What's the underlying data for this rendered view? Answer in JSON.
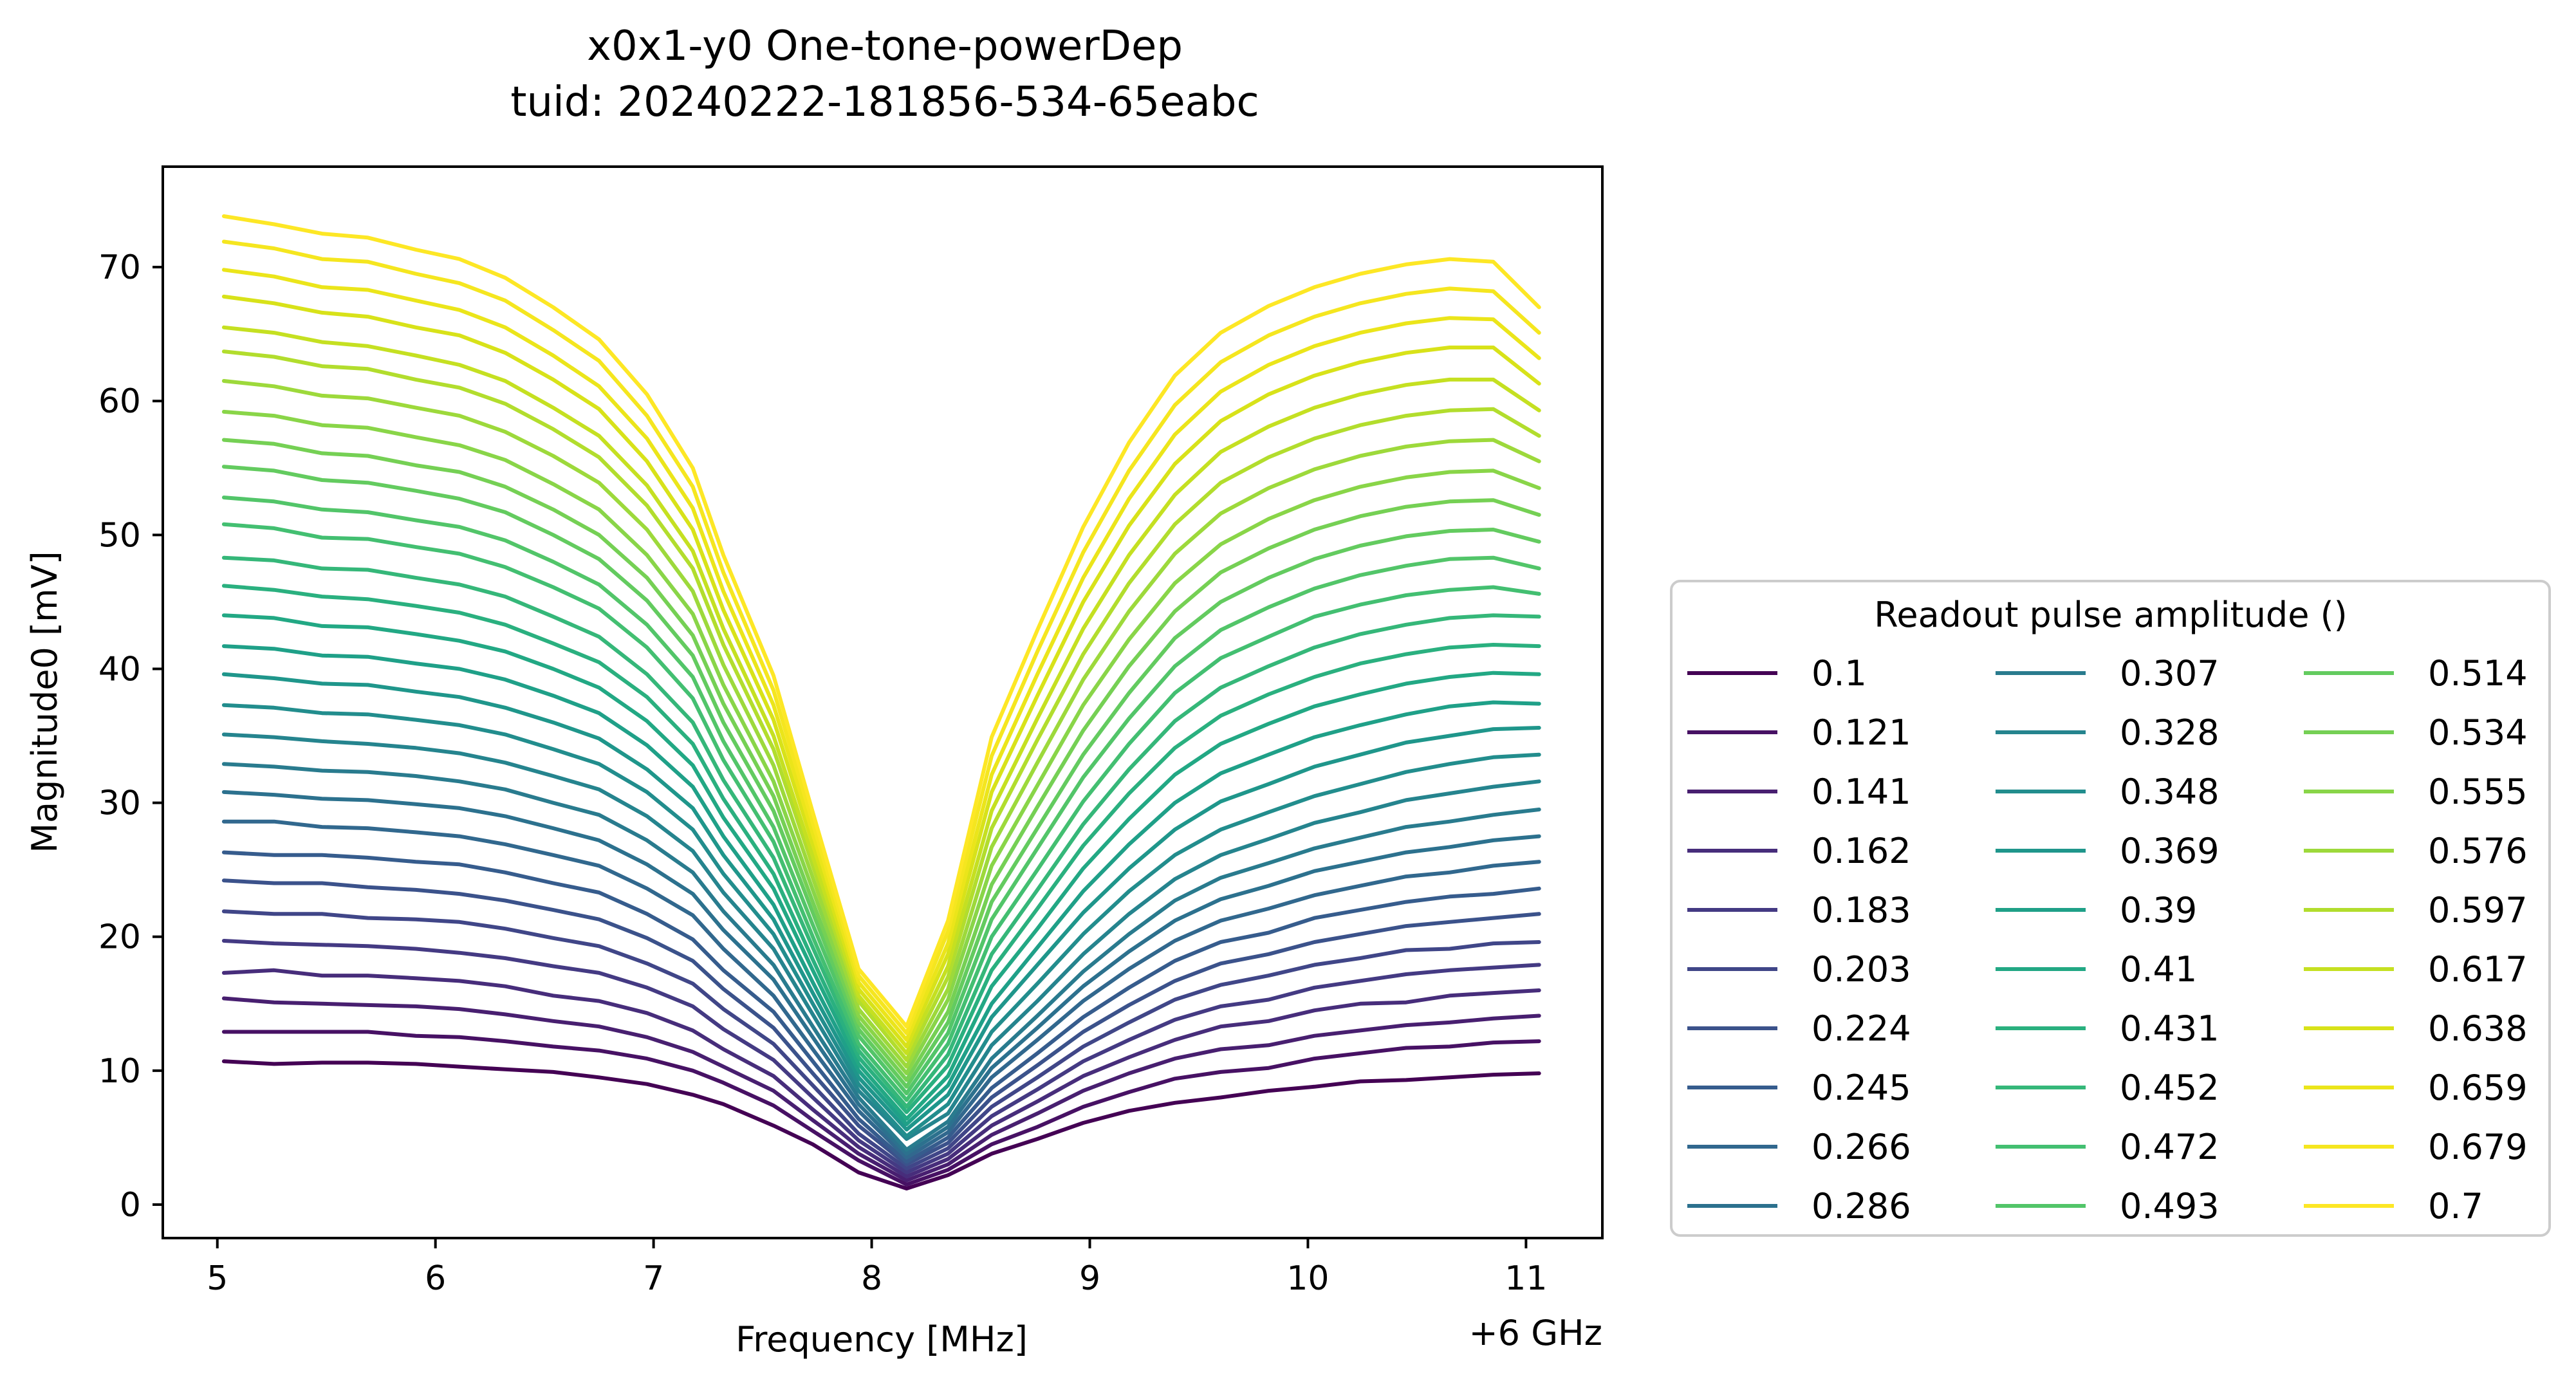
{
  "chart_data": {
    "type": "line",
    "title": "x0x1-y0 One-tone-powerDep",
    "subtitle": "tuid: 20240222-181856-534-65eabc",
    "xlabel": "Frequency [MHz]",
    "x_offset_label": "+6 GHz",
    "ylabel": "Magnitude0 [mV]",
    "xlim": [
      4.75,
      11.35
    ],
    "ylim": [
      -2.5,
      77.5
    ],
    "xticks": [
      5,
      6,
      7,
      8,
      9,
      10,
      11
    ],
    "yticks": [
      0,
      10,
      20,
      30,
      40,
      50,
      60,
      70
    ],
    "grid": false,
    "colormap": "viridis",
    "legend": {
      "title": "Readout pulse amplitude ()",
      "placement": "right",
      "ncol": 3
    },
    "x": [
      5.03,
      5.26,
      5.48,
      5.69,
      5.91,
      6.11,
      6.32,
      6.54,
      6.75,
      6.97,
      7.18,
      7.32,
      7.55,
      7.73,
      7.94,
      8.16,
      8.35,
      8.55,
      8.76,
      8.97,
      9.18,
      9.39,
      9.6,
      9.82,
      10.03,
      10.24,
      10.45,
      10.65,
      10.85,
      11.06
    ],
    "series": [
      {
        "name": "0.1",
        "color": "#440154",
        "values": [
          10.7,
          10.5,
          10.6,
          10.6,
          10.5,
          10.3,
          10.1,
          9.9,
          9.5,
          9.0,
          8.2,
          7.5,
          5.9,
          4.5,
          2.4,
          1.2,
          2.2,
          3.8,
          4.9,
          6.1,
          7.0,
          7.6,
          8.0,
          8.5,
          8.8,
          9.2,
          9.3,
          9.5,
          9.7,
          9.8
        ]
      },
      {
        "name": "0.121",
        "color": "#471164",
        "values": [
          12.9,
          12.9,
          12.9,
          12.9,
          12.6,
          12.5,
          12.2,
          11.8,
          11.5,
          10.9,
          10.0,
          9.1,
          7.4,
          5.5,
          3.3,
          1.5,
          2.6,
          4.5,
          5.8,
          7.3,
          8.4,
          9.4,
          9.9,
          10.2,
          10.9,
          11.3,
          11.7,
          11.8,
          12.1,
          12.2
        ]
      },
      {
        "name": "0.141",
        "color": "#481f70",
        "values": [
          15.4,
          15.1,
          15.0,
          14.9,
          14.8,
          14.6,
          14.2,
          13.7,
          13.3,
          12.5,
          11.4,
          10.3,
          8.5,
          6.3,
          3.8,
          1.8,
          3.0,
          5.2,
          6.8,
          8.5,
          9.8,
          10.9,
          11.6,
          11.9,
          12.6,
          13.0,
          13.4,
          13.6,
          13.9,
          14.1
        ]
      },
      {
        "name": "0.162",
        "color": "#472d7b",
        "values": [
          17.3,
          17.5,
          17.1,
          17.1,
          16.9,
          16.7,
          16.3,
          15.6,
          15.2,
          14.3,
          13.0,
          11.6,
          9.6,
          7.1,
          4.3,
          2.1,
          3.4,
          5.9,
          7.7,
          9.6,
          11.0,
          12.3,
          13.3,
          13.7,
          14.5,
          15.0,
          15.1,
          15.6,
          15.8,
          16.0
        ]
      },
      {
        "name": "0.183",
        "color": "#443a83",
        "values": [
          19.7,
          19.5,
          19.4,
          19.3,
          19.1,
          18.8,
          18.4,
          17.8,
          17.3,
          16.2,
          14.8,
          13.1,
          10.8,
          8.0,
          4.8,
          2.4,
          3.8,
          6.6,
          8.6,
          10.7,
          12.3,
          13.8,
          14.8,
          15.3,
          16.2,
          16.7,
          17.2,
          17.5,
          17.7,
          17.9
        ]
      },
      {
        "name": "0.203",
        "color": "#404688",
        "values": [
          21.9,
          21.7,
          21.7,
          21.4,
          21.3,
          21.1,
          20.6,
          19.9,
          19.3,
          18.0,
          16.5,
          14.6,
          12.0,
          8.9,
          5.3,
          2.7,
          4.2,
          7.3,
          9.5,
          11.8,
          13.6,
          15.3,
          16.4,
          17.1,
          17.9,
          18.4,
          19.0,
          19.1,
          19.5,
          19.6
        ]
      },
      {
        "name": "0.224",
        "color": "#3b528b",
        "values": [
          24.2,
          24.0,
          24.0,
          23.7,
          23.5,
          23.2,
          22.7,
          22.0,
          21.3,
          19.9,
          18.2,
          16.1,
          13.2,
          9.8,
          5.9,
          3.0,
          4.6,
          8.0,
          10.4,
          12.9,
          14.9,
          16.7,
          18.0,
          18.7,
          19.6,
          20.2,
          20.8,
          21.1,
          21.4,
          21.7
        ]
      },
      {
        "name": "0.245",
        "color": "#365c8d",
        "values": [
          26.3,
          26.1,
          26.1,
          25.9,
          25.6,
          25.4,
          24.8,
          24.0,
          23.3,
          21.7,
          19.8,
          17.5,
          14.4,
          10.7,
          6.4,
          3.2,
          5.0,
          8.7,
          11.3,
          14.0,
          16.2,
          18.2,
          19.6,
          20.3,
          21.4,
          22.0,
          22.6,
          23.0,
          23.2,
          23.6
        ]
      },
      {
        "name": "0.266",
        "color": "#31688e",
        "values": [
          28.6,
          28.6,
          28.2,
          28.1,
          27.8,
          27.5,
          26.9,
          26.1,
          25.3,
          23.6,
          21.6,
          19.1,
          15.6,
          11.6,
          7.0,
          3.5,
          5.4,
          9.5,
          12.3,
          15.2,
          17.6,
          19.7,
          21.2,
          22.1,
          23.1,
          23.8,
          24.5,
          24.8,
          25.3,
          25.6
        ]
      },
      {
        "name": "0.286",
        "color": "#2c718e",
        "values": [
          30.8,
          30.6,
          30.3,
          30.2,
          29.9,
          29.6,
          29.0,
          28.1,
          27.2,
          25.4,
          23.2,
          20.5,
          16.8,
          12.5,
          7.5,
          3.8,
          5.8,
          10.2,
          13.2,
          16.3,
          18.9,
          21.2,
          22.8,
          23.8,
          24.9,
          25.6,
          26.3,
          26.7,
          27.2,
          27.5
        ]
      },
      {
        "name": "0.307",
        "color": "#297b8e",
        "values": [
          32.9,
          32.7,
          32.4,
          32.3,
          32.0,
          31.6,
          31.0,
          30.0,
          29.1,
          27.2,
          24.8,
          21.9,
          17.9,
          13.3,
          8.0,
          4.1,
          6.2,
          10.9,
          14.1,
          17.4,
          20.2,
          22.7,
          24.4,
          25.5,
          26.6,
          27.4,
          28.2,
          28.6,
          29.1,
          29.5
        ]
      },
      {
        "name": "0.328",
        "color": "#25848e",
        "values": [
          35.1,
          34.9,
          34.6,
          34.4,
          34.1,
          33.7,
          33.0,
          32.0,
          31.0,
          29.0,
          26.4,
          23.3,
          19.1,
          14.2,
          8.5,
          4.9,
          6.8,
          11.9,
          15.2,
          18.7,
          21.7,
          24.3,
          26.1,
          27.3,
          28.5,
          29.3,
          30.2,
          30.7,
          31.2,
          31.6
        ]
      },
      {
        "name": "0.348",
        "color": "#228d8d",
        "values": [
          37.3,
          37.1,
          36.7,
          36.6,
          36.2,
          35.8,
          35.1,
          34.0,
          32.9,
          30.8,
          28.0,
          24.7,
          20.2,
          15.0,
          9.0,
          5.1,
          7.5,
          12.9,
          16.5,
          20.2,
          23.4,
          26.1,
          28.0,
          29.3,
          30.5,
          31.4,
          32.3,
          32.9,
          33.4,
          33.6
        ]
      },
      {
        "name": "0.369",
        "color": "#1f968b",
        "values": [
          39.6,
          39.3,
          38.9,
          38.8,
          38.3,
          37.9,
          37.1,
          36.0,
          34.8,
          32.5,
          29.6,
          26.1,
          21.3,
          15.8,
          9.5,
          5.6,
          8.2,
          14.0,
          17.9,
          21.8,
          25.1,
          28.0,
          30.1,
          31.4,
          32.7,
          33.6,
          34.5,
          35.0,
          35.5,
          35.6
        ]
      },
      {
        "name": "0.39",
        "color": "#1fa088",
        "values": [
          41.7,
          41.5,
          41.0,
          40.9,
          40.4,
          40.0,
          39.2,
          38.0,
          36.7,
          34.3,
          31.2,
          27.5,
          22.4,
          16.6,
          10.0,
          6.0,
          8.9,
          15.0,
          19.2,
          23.4,
          26.9,
          30.0,
          32.2,
          33.6,
          34.9,
          35.8,
          36.6,
          37.2,
          37.5,
          37.4
        ]
      },
      {
        "name": "0.41",
        "color": "#22a884",
        "values": [
          44.0,
          43.8,
          43.2,
          43.1,
          42.6,
          42.1,
          41.3,
          40.0,
          38.6,
          36.1,
          32.8,
          28.9,
          23.6,
          17.5,
          10.5,
          6.4,
          9.6,
          16.3,
          20.6,
          25.1,
          28.8,
          32.1,
          34.4,
          35.9,
          37.2,
          38.1,
          38.9,
          39.4,
          39.7,
          39.6
        ]
      },
      {
        "name": "0.431",
        "color": "#2ab07f",
        "values": [
          46.2,
          45.9,
          45.4,
          45.2,
          44.7,
          44.2,
          43.3,
          41.9,
          40.5,
          37.9,
          34.4,
          30.3,
          24.7,
          18.3,
          11.0,
          6.9,
          10.4,
          17.5,
          22.1,
          26.8,
          30.7,
          34.1,
          36.5,
          38.1,
          39.4,
          40.4,
          41.1,
          41.6,
          41.8,
          41.7
        ]
      },
      {
        "name": "0.452",
        "color": "#35b779",
        "values": [
          48.3,
          48.1,
          47.5,
          47.4,
          46.8,
          46.3,
          45.4,
          43.9,
          42.4,
          39.6,
          36.0,
          31.7,
          25.9,
          19.2,
          11.5,
          7.3,
          11.2,
          18.7,
          23.5,
          28.4,
          32.5,
          36.1,
          38.6,
          40.2,
          41.6,
          42.6,
          43.3,
          43.8,
          44.0,
          43.9
        ]
      },
      {
        "name": "0.472",
        "color": "#43bf71",
        "values": [
          50.8,
          50.5,
          49.8,
          49.7,
          49.1,
          48.6,
          47.6,
          46.1,
          44.5,
          41.6,
          37.8,
          33.2,
          27.1,
          20.0,
          12.0,
          7.8,
          12.0,
          20.0,
          25.0,
          30.1,
          34.4,
          38.2,
          40.8,
          42.4,
          43.9,
          44.8,
          45.5,
          45.9,
          46.1,
          45.6
        ]
      },
      {
        "name": "0.493",
        "color": "#52c569",
        "values": [
          52.8,
          52.5,
          51.9,
          51.7,
          51.1,
          50.6,
          49.6,
          48.0,
          46.3,
          43.3,
          39.4,
          34.6,
          28.2,
          20.9,
          12.6,
          8.3,
          12.8,
          21.3,
          26.6,
          31.9,
          36.3,
          40.2,
          42.9,
          44.6,
          46.0,
          47.0,
          47.7,
          48.2,
          48.3,
          47.5
        ]
      },
      {
        "name": "0.514",
        "color": "#63cb5f",
        "values": [
          55.1,
          54.8,
          54.1,
          53.9,
          53.3,
          52.7,
          51.7,
          50.0,
          48.2,
          45.1,
          41.0,
          36.0,
          29.4,
          21.8,
          13.1,
          8.8,
          13.6,
          22.6,
          28.1,
          33.6,
          38.2,
          42.3,
          45.0,
          46.8,
          48.2,
          49.2,
          49.9,
          50.3,
          50.4,
          49.5
        ]
      },
      {
        "name": "0.534",
        "color": "#75d054",
        "values": [
          57.1,
          56.8,
          56.1,
          55.9,
          55.2,
          54.7,
          53.6,
          51.9,
          50.0,
          46.8,
          42.5,
          37.4,
          30.5,
          22.6,
          13.6,
          9.3,
          14.4,
          23.9,
          29.7,
          35.4,
          40.2,
          44.3,
          47.2,
          49.0,
          50.4,
          51.4,
          52.1,
          52.5,
          52.6,
          51.5
        ]
      },
      {
        "name": "0.555",
        "color": "#89d548",
        "values": [
          59.2,
          58.9,
          58.2,
          58.0,
          57.3,
          56.7,
          55.6,
          53.8,
          51.9,
          48.5,
          44.1,
          38.8,
          31.6,
          23.5,
          14.1,
          9.8,
          15.3,
          25.3,
          31.3,
          37.3,
          42.2,
          46.4,
          49.3,
          51.2,
          52.6,
          53.6,
          54.3,
          54.7,
          54.8,
          53.5
        ]
      },
      {
        "name": "0.576",
        "color": "#9dd93b",
        "values": [
          61.5,
          61.1,
          60.4,
          60.2,
          59.5,
          58.9,
          57.7,
          55.9,
          53.9,
          50.4,
          45.8,
          40.3,
          32.8,
          24.4,
          14.6,
          10.3,
          16.1,
          26.7,
          33.0,
          39.2,
          44.3,
          48.6,
          51.6,
          53.5,
          54.9,
          55.9,
          56.6,
          57.0,
          57.1,
          55.5
        ]
      },
      {
        "name": "0.597",
        "color": "#b2dd2d",
        "values": [
          63.7,
          63.3,
          62.6,
          62.4,
          61.6,
          61.0,
          59.8,
          57.9,
          55.8,
          52.2,
          47.5,
          41.8,
          34.0,
          25.3,
          15.2,
          10.8,
          17.0,
          28.1,
          34.7,
          41.1,
          46.4,
          50.8,
          53.9,
          55.8,
          57.2,
          58.2,
          58.9,
          59.3,
          59.4,
          57.4
        ]
      },
      {
        "name": "0.617",
        "color": "#c5e021",
        "values": [
          65.5,
          65.1,
          64.4,
          64.1,
          63.4,
          62.7,
          61.5,
          59.5,
          57.4,
          53.7,
          48.8,
          43.0,
          35.0,
          26.0,
          15.6,
          11.3,
          17.8,
          29.4,
          36.3,
          43.0,
          48.5,
          53.0,
          56.2,
          58.1,
          59.5,
          60.5,
          61.2,
          61.6,
          61.6,
          59.3
        ]
      },
      {
        "name": "0.638",
        "color": "#d8e219",
        "values": [
          67.8,
          67.3,
          66.6,
          66.3,
          65.5,
          64.9,
          63.6,
          61.6,
          59.4,
          55.5,
          50.4,
          44.4,
          36.2,
          26.9,
          16.1,
          11.8,
          18.7,
          30.8,
          38.0,
          45.0,
          50.7,
          55.3,
          58.5,
          60.5,
          61.9,
          62.9,
          63.6,
          64.0,
          64.0,
          61.3
        ]
      },
      {
        "name": "0.659",
        "color": "#ebe51a",
        "values": [
          69.8,
          69.3,
          68.5,
          68.3,
          67.5,
          66.8,
          65.5,
          63.4,
          61.1,
          57.2,
          52.0,
          45.8,
          37.3,
          27.7,
          16.6,
          12.3,
          19.5,
          32.1,
          39.6,
          46.8,
          52.7,
          57.5,
          60.7,
          62.7,
          64.1,
          65.1,
          65.8,
          66.2,
          66.1,
          63.2
        ]
      },
      {
        "name": "0.679",
        "color": "#f5e61f",
        "values": [
          71.9,
          71.4,
          70.6,
          70.4,
          69.5,
          68.8,
          67.5,
          65.3,
          63.0,
          58.9,
          53.6,
          47.2,
          38.4,
          28.5,
          17.1,
          12.8,
          20.4,
          33.5,
          41.3,
          48.7,
          54.8,
          59.7,
          62.9,
          64.9,
          66.3,
          67.3,
          68.0,
          68.4,
          68.2,
          65.1
        ]
      },
      {
        "name": "0.7",
        "color": "#fde725",
        "values": [
          73.8,
          73.2,
          72.5,
          72.2,
          71.3,
          70.6,
          69.2,
          67.0,
          64.6,
          60.5,
          55.0,
          48.5,
          39.5,
          29.3,
          17.6,
          13.3,
          21.2,
          34.9,
          42.9,
          50.6,
          56.9,
          61.9,
          65.1,
          67.1,
          68.5,
          69.5,
          70.2,
          70.6,
          70.4,
          67.0
        ]
      }
    ]
  }
}
